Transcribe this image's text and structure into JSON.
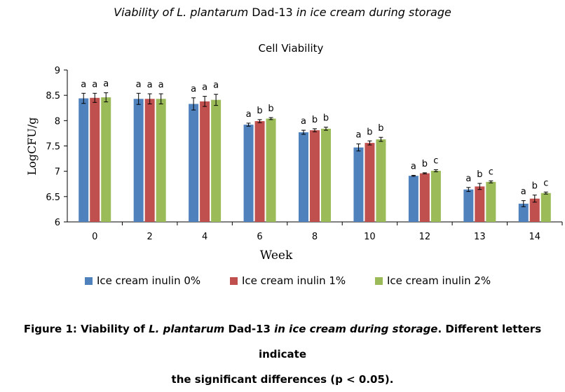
{
  "header": {
    "title_prefix": "Viability of ",
    "title_species": "L. plantarum",
    "title_strain": " Dad-13 ",
    "title_suffix": "in ice cream during storage"
  },
  "caption": {
    "label": "Figure 1: Viability of ",
    "species": "L. plantarum",
    "strain": " Dad-13 ",
    "phrase": "in ice cream during storage",
    "rest_line1": ". Different letters indicate",
    "rest_line2": "the significant differences (p < 0.05)."
  },
  "chart_data": {
    "type": "bar",
    "title": "Cell Viability",
    "xlabel": "Week",
    "ylabel": "LogCFU/g",
    "ylim": [
      6,
      9
    ],
    "yticks": [
      "6",
      "6.5",
      "7",
      "7.5",
      "8",
      "8.5",
      "9"
    ],
    "grid": false,
    "legend_position": "bottom",
    "categories": [
      "0",
      "2",
      "4",
      "6",
      "8",
      "10",
      "12",
      "13",
      "14"
    ],
    "series": [
      {
        "name": "Ice cream inulin 0%",
        "color": "#4F81BD",
        "values": [
          8.44,
          8.43,
          8.33,
          7.92,
          7.77,
          7.47,
          6.91,
          6.64,
          6.36
        ],
        "errors": [
          0.1,
          0.11,
          0.12,
          0.03,
          0.04,
          0.07,
          0.01,
          0.04,
          0.06
        ],
        "letters": [
          "a",
          "a",
          "a",
          "a",
          "a",
          "a",
          "a",
          "a",
          "a"
        ]
      },
      {
        "name": "Ice cream inulin 1%",
        "color": "#C0504D",
        "values": [
          8.45,
          8.43,
          8.38,
          7.99,
          7.81,
          7.56,
          6.96,
          6.7,
          6.46
        ],
        "errors": [
          0.09,
          0.1,
          0.1,
          0.03,
          0.03,
          0.04,
          0.01,
          0.06,
          0.07
        ],
        "letters": [
          "a",
          "a",
          "a",
          "b",
          "b",
          "b",
          "b",
          "b",
          "b"
        ]
      },
      {
        "name": "Ice cream inulin 2%",
        "color": "#9BBB59",
        "values": [
          8.46,
          8.43,
          8.41,
          8.04,
          7.84,
          7.63,
          7.01,
          6.79,
          6.57
        ],
        "errors": [
          0.09,
          0.1,
          0.11,
          0.02,
          0.03,
          0.04,
          0.02,
          0.02,
          0.02
        ],
        "letters": [
          "a",
          "a",
          "a",
          "b",
          "b",
          "b",
          "c",
          "c",
          "c"
        ]
      }
    ]
  }
}
